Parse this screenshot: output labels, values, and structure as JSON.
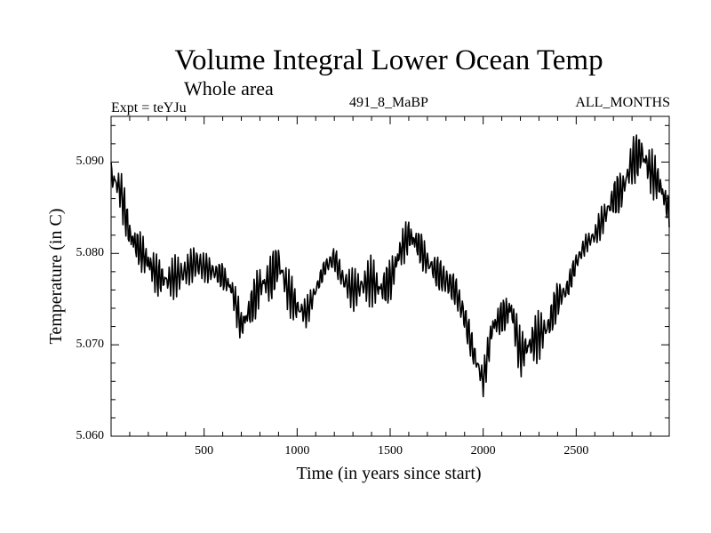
{
  "chart_data": {
    "type": "line",
    "title": "Volume Integral Lower Ocean Temp",
    "subtitle": "Whole area",
    "experiment": "Expt = teYJu",
    "run_id": "491_8_MaBP",
    "period": "ALL_MONTHS",
    "xlabel": "Time (in years since start)",
    "ylabel": "Temperature (in C)",
    "xlim": [
      0,
      3000
    ],
    "ylim": [
      5.06,
      5.095
    ],
    "x_ticks": [
      500,
      1000,
      1500,
      2000,
      2500
    ],
    "x_tick_labels": [
      "500",
      "1000",
      "1500",
      "2000",
      "2500"
    ],
    "y_ticks": [
      5.06,
      5.07,
      5.08,
      5.09
    ],
    "y_tick_labels": [
      "5.060",
      "5.070",
      "5.080",
      "5.090"
    ],
    "grid": false,
    "series": [
      {
        "name": "Volume Integral Lower Ocean Temp",
        "color": "#000000",
        "x": [
          0,
          50,
          100,
          150,
          200,
          250,
          300,
          350,
          400,
          450,
          500,
          550,
          600,
          650,
          700,
          750,
          800,
          850,
          900,
          950,
          1000,
          1050,
          1100,
          1150,
          1200,
          1250,
          1300,
          1350,
          1400,
          1450,
          1500,
          1550,
          1600,
          1650,
          1700,
          1750,
          1800,
          1850,
          1900,
          1950,
          2000,
          2050,
          2100,
          2150,
          2200,
          2250,
          2300,
          2350,
          2400,
          2450,
          2500,
          2550,
          2600,
          2650,
          2700,
          2750,
          2800,
          2850,
          2900,
          2950,
          3000
        ],
        "y": [
          5.0885,
          5.087,
          5.082,
          5.0805,
          5.079,
          5.0775,
          5.077,
          5.0775,
          5.078,
          5.079,
          5.0785,
          5.078,
          5.0775,
          5.076,
          5.072,
          5.074,
          5.0765,
          5.077,
          5.079,
          5.076,
          5.074,
          5.0735,
          5.076,
          5.0785,
          5.0795,
          5.077,
          5.076,
          5.0765,
          5.077,
          5.076,
          5.077,
          5.08,
          5.082,
          5.081,
          5.079,
          5.078,
          5.077,
          5.076,
          5.073,
          5.069,
          5.066,
          5.072,
          5.073,
          5.074,
          5.069,
          5.07,
          5.071,
          5.072,
          5.075,
          5.076,
          5.079,
          5.081,
          5.082,
          5.084,
          5.086,
          5.087,
          5.09,
          5.091,
          5.089,
          5.0875,
          5.0845
        ]
      }
    ]
  }
}
